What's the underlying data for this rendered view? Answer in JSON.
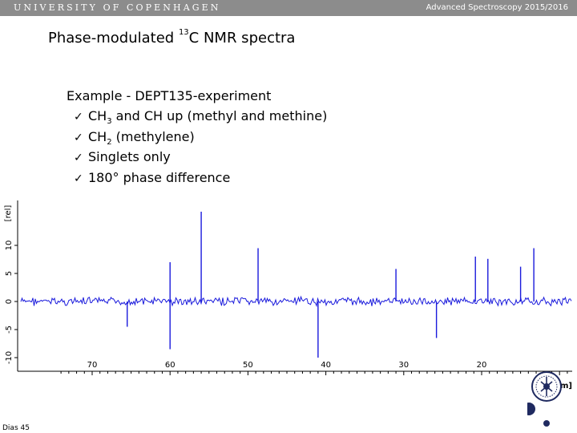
{
  "header": {
    "university": "UNIVERSITY OF COPENHAGEN",
    "course": "Advanced Spectroscopy 2015/2016"
  },
  "slide": {
    "title_pre": "Phase-modulated ",
    "title_sup": "13",
    "title_post": "C NMR spectra",
    "example": "Example - DEPT135-experiment",
    "bullets": [
      {
        "pre": "CH",
        "sub": "3",
        "post": " and CH up (methyl and methine)"
      },
      {
        "pre": "CH",
        "sub": "2",
        "post": " (methylene)"
      },
      {
        "pre": "Singlets only",
        "sub": "",
        "post": ""
      },
      {
        "pre": "180° phase difference",
        "sub": "",
        "post": ""
      }
    ],
    "check_glyph": "✓",
    "number": "Dias 45"
  },
  "spectrum": {
    "trace_color": "#1a1adc",
    "axis_color": "#000000",
    "y_unit": "[rel]",
    "x_unit": "[ppm]",
    "y_ticks": [
      "10",
      "5",
      "0",
      "-5",
      "-10"
    ],
    "x_ticks": [
      "70",
      "60",
      "50",
      "40",
      "30",
      "20"
    ],
    "peaks": [
      {
        "ppm": 65.5,
        "h": -4.5
      },
      {
        "ppm": 60.0,
        "h": 7.0
      },
      {
        "ppm": 60.0,
        "h": -8.5
      },
      {
        "ppm": 56.0,
        "h": 16.0
      },
      {
        "ppm": 48.7,
        "h": 9.5
      },
      {
        "ppm": 41.0,
        "h": -10.0
      },
      {
        "ppm": 31.0,
        "h": 5.8
      },
      {
        "ppm": 25.8,
        "h": -6.5
      },
      {
        "ppm": 20.8,
        "h": 8.0
      },
      {
        "ppm": 19.2,
        "h": 7.6
      },
      {
        "ppm": 15.0,
        "h": 6.2
      },
      {
        "ppm": 13.3,
        "h": 9.5
      }
    ]
  }
}
